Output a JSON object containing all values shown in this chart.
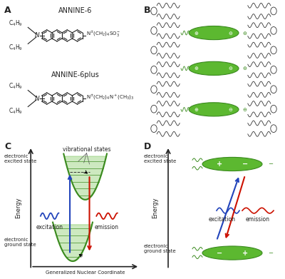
{
  "bg_color": "#ffffff",
  "panel_labels": [
    "A",
    "B",
    "C",
    "D"
  ],
  "annine6_label": "ANNINE-6",
  "annine6plus_label": "ANNINE-6plus",
  "green_dye": "#3a8a1e",
  "green_fill": "#5cb830",
  "green_light": "#a0d870",
  "blue_arrow": "#2244bb",
  "red_arrow": "#cc1100",
  "text_color": "#222222",
  "axis_color": "#111111"
}
